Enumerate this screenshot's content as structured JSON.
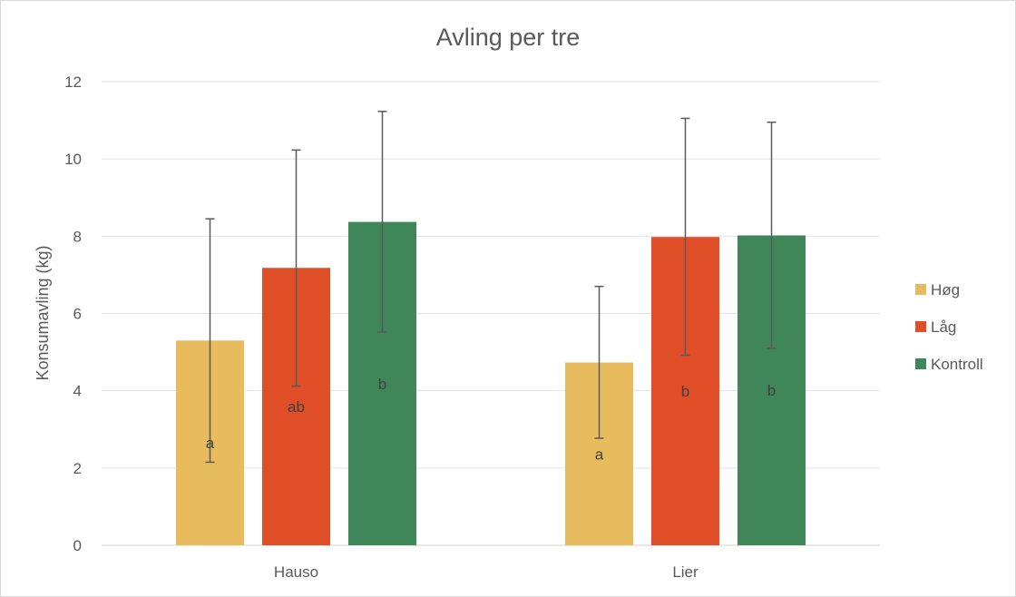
{
  "chart_data": {
    "type": "bar",
    "title": "Avling per tre",
    "xlabel": "",
    "ylabel": "Konsumavling (kg)",
    "ylim": [
      0,
      12
    ],
    "yticks": [
      0,
      2,
      4,
      6,
      8,
      10,
      12
    ],
    "grid": true,
    "legend_position": "right",
    "categories": [
      "Hauso",
      "Lier"
    ],
    "series": [
      {
        "name": "Høg",
        "color": "#E8BC5E",
        "values": [
          5.3,
          4.73
        ],
        "error_upper": [
          8.45,
          6.7
        ],
        "error_lower": [
          2.15,
          2.77
        ],
        "letters": [
          "a",
          "a"
        ]
      },
      {
        "name": "Låg",
        "color": "#E04E28",
        "values": [
          7.18,
          7.98
        ],
        "error_upper": [
          10.23,
          11.05
        ],
        "error_lower": [
          4.12,
          4.92
        ],
        "letters": [
          "ab",
          "b"
        ]
      },
      {
        "name": "Kontroll",
        "color": "#3F8658",
        "values": [
          8.37,
          8.02
        ],
        "error_upper": [
          11.23,
          10.95
        ],
        "error_lower": [
          5.52,
          5.1
        ],
        "letters": [
          "b",
          "b"
        ]
      }
    ]
  }
}
